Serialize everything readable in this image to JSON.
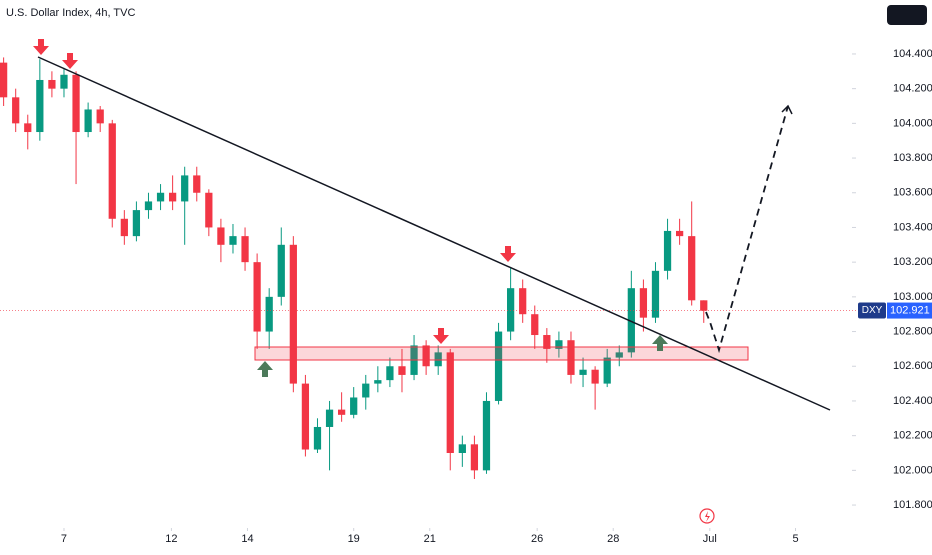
{
  "chart_data": {
    "type": "candlestick",
    "title": "U.S. Dollar Index, 4h, TVC",
    "symbol": "DXY",
    "last_price": 102.921,
    "up_color": "#089981",
    "down_color": "#f23645",
    "ylim": [
      101.685,
      104.711
    ],
    "xlim": [
      -0.3,
      69.7
    ],
    "yticks": [
      {
        "value": 101.8,
        "label": "101.800"
      },
      {
        "value": 102.0,
        "label": "102.000"
      },
      {
        "value": 102.2,
        "label": "102.200"
      },
      {
        "value": 102.4,
        "label": "102.400"
      },
      {
        "value": 102.6,
        "label": "102.600"
      },
      {
        "value": 102.8,
        "label": "102.800"
      },
      {
        "value": 103.0,
        "label": "103.000"
      },
      {
        "value": 103.2,
        "label": "103.200"
      },
      {
        "value": 103.4,
        "label": "103.400"
      },
      {
        "value": 103.6,
        "label": "103.600"
      },
      {
        "value": 103.8,
        "label": "103.800"
      },
      {
        "value": 104.0,
        "label": "104.000"
      },
      {
        "value": 104.2,
        "label": "104.200"
      },
      {
        "value": 104.4,
        "label": "104.400"
      }
    ],
    "xticks": [
      {
        "value": 5,
        "label": "7"
      },
      {
        "value": 13.9,
        "label": "12"
      },
      {
        "value": 20.2,
        "label": "14"
      },
      {
        "value": 29,
        "label": "19"
      },
      {
        "value": 35.3,
        "label": "21"
      },
      {
        "value": 44.2,
        "label": "26"
      },
      {
        "value": 50.5,
        "label": "28"
      },
      {
        "value": 58.5,
        "label": "Jul"
      },
      {
        "value": 65.6,
        "label": "5"
      }
    ],
    "ohlc": [
      [
        104.35,
        104.38,
        104.1,
        104.15
      ],
      [
        104.15,
        104.2,
        103.95,
        104.0
      ],
      [
        104.0,
        104.05,
        103.85,
        103.95
      ],
      [
        103.95,
        104.37,
        103.9,
        104.25
      ],
      [
        104.25,
        104.3,
        104.15,
        104.2
      ],
      [
        104.2,
        104.32,
        104.15,
        104.28
      ],
      [
        104.28,
        104.3,
        103.65,
        103.95
      ],
      [
        103.95,
        104.12,
        103.92,
        104.08
      ],
      [
        104.08,
        104.1,
        103.95,
        104.0
      ],
      [
        104.0,
        104.02,
        103.4,
        103.45
      ],
      [
        103.45,
        103.5,
        103.3,
        103.35
      ],
      [
        103.35,
        103.55,
        103.32,
        103.5
      ],
      [
        103.5,
        103.6,
        103.45,
        103.55
      ],
      [
        103.55,
        103.65,
        103.5,
        103.6
      ],
      [
        103.6,
        103.7,
        103.5,
        103.55
      ],
      [
        103.55,
        103.75,
        103.3,
        103.7
      ],
      [
        103.7,
        103.75,
        103.55,
        103.6
      ],
      [
        103.6,
        103.62,
        103.35,
        103.4
      ],
      [
        103.4,
        103.45,
        103.2,
        103.3
      ],
      [
        103.3,
        103.42,
        103.25,
        103.35
      ],
      [
        103.35,
        103.4,
        103.15,
        103.2
      ],
      [
        103.2,
        103.25,
        102.7,
        102.8
      ],
      [
        102.8,
        103.05,
        102.7,
        103.0
      ],
      [
        103.0,
        103.4,
        102.95,
        103.3
      ],
      [
        103.3,
        103.35,
        102.45,
        102.5
      ],
      [
        102.5,
        102.55,
        102.08,
        102.12
      ],
      [
        102.12,
        102.3,
        102.1,
        102.25
      ],
      [
        102.25,
        102.4,
        102.0,
        102.35
      ],
      [
        102.35,
        102.45,
        102.28,
        102.32
      ],
      [
        102.32,
        102.48,
        102.3,
        102.42
      ],
      [
        102.42,
        102.55,
        102.35,
        102.5
      ],
      [
        102.5,
        102.6,
        102.45,
        102.52
      ],
      [
        102.52,
        102.65,
        102.48,
        102.6
      ],
      [
        102.6,
        102.7,
        102.45,
        102.55
      ],
      [
        102.55,
        102.78,
        102.52,
        102.72
      ],
      [
        102.72,
        102.75,
        102.55,
        102.6
      ],
      [
        102.6,
        102.72,
        102.55,
        102.68
      ],
      [
        102.68,
        102.7,
        102.0,
        102.1
      ],
      [
        102.1,
        102.2,
        102.02,
        102.15
      ],
      [
        102.15,
        102.2,
        101.95,
        102.0
      ],
      [
        102.0,
        102.45,
        101.98,
        102.4
      ],
      [
        102.4,
        102.85,
        102.38,
        102.8
      ],
      [
        102.8,
        103.17,
        102.75,
        103.05
      ],
      [
        103.05,
        103.1,
        102.85,
        102.9
      ],
      [
        102.9,
        102.95,
        102.7,
        102.78
      ],
      [
        102.78,
        102.82,
        102.62,
        102.7
      ],
      [
        102.7,
        102.8,
        102.65,
        102.75
      ],
      [
        102.75,
        102.8,
        102.5,
        102.55
      ],
      [
        102.55,
        102.65,
        102.48,
        102.58
      ],
      [
        102.58,
        102.6,
        102.35,
        102.5
      ],
      [
        102.5,
        102.7,
        102.48,
        102.65
      ],
      [
        102.65,
        102.72,
        102.6,
        102.68
      ],
      [
        102.68,
        103.15,
        102.65,
        103.05
      ],
      [
        103.05,
        103.1,
        102.8,
        102.88
      ],
      [
        102.88,
        103.2,
        102.85,
        103.15
      ],
      [
        103.15,
        103.45,
        103.1,
        103.38
      ],
      [
        103.38,
        103.45,
        103.3,
        103.35
      ],
      [
        103.35,
        103.55,
        102.95,
        102.98
      ],
      [
        102.98,
        102.98,
        102.85,
        102.92
      ]
    ]
  }
}
